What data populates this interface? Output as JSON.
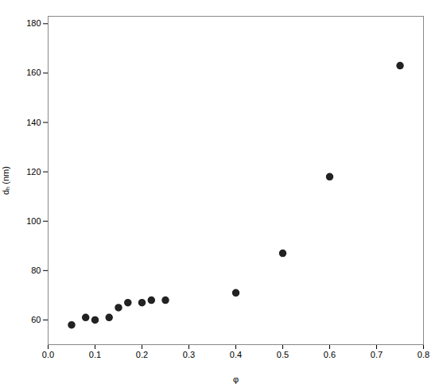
{
  "chart_data": {
    "type": "scatter",
    "x": [
      0.05,
      0.08,
      0.1,
      0.13,
      0.15,
      0.17,
      0.2,
      0.22,
      0.25,
      0.4,
      0.5,
      0.6,
      0.75
    ],
    "values": [
      58,
      61,
      60,
      61,
      65,
      67,
      67,
      68,
      68,
      71,
      87,
      118,
      163
    ],
    "color": "#222222",
    "marker": "circle",
    "xlabel": "φ",
    "ylabel": "dₕ (nm)",
    "xlim": [
      0.0,
      0.8
    ],
    "ylim": [
      50,
      183
    ],
    "xticks": [
      {
        "value": 0.0,
        "label": "0.0"
      },
      0.1,
      0.2,
      0.3,
      0.4,
      0.5,
      0.6,
      0.7,
      0.8
    ],
    "yticks": [
      60,
      80,
      100,
      120,
      140,
      160,
      180
    ],
    "grid": false
  }
}
